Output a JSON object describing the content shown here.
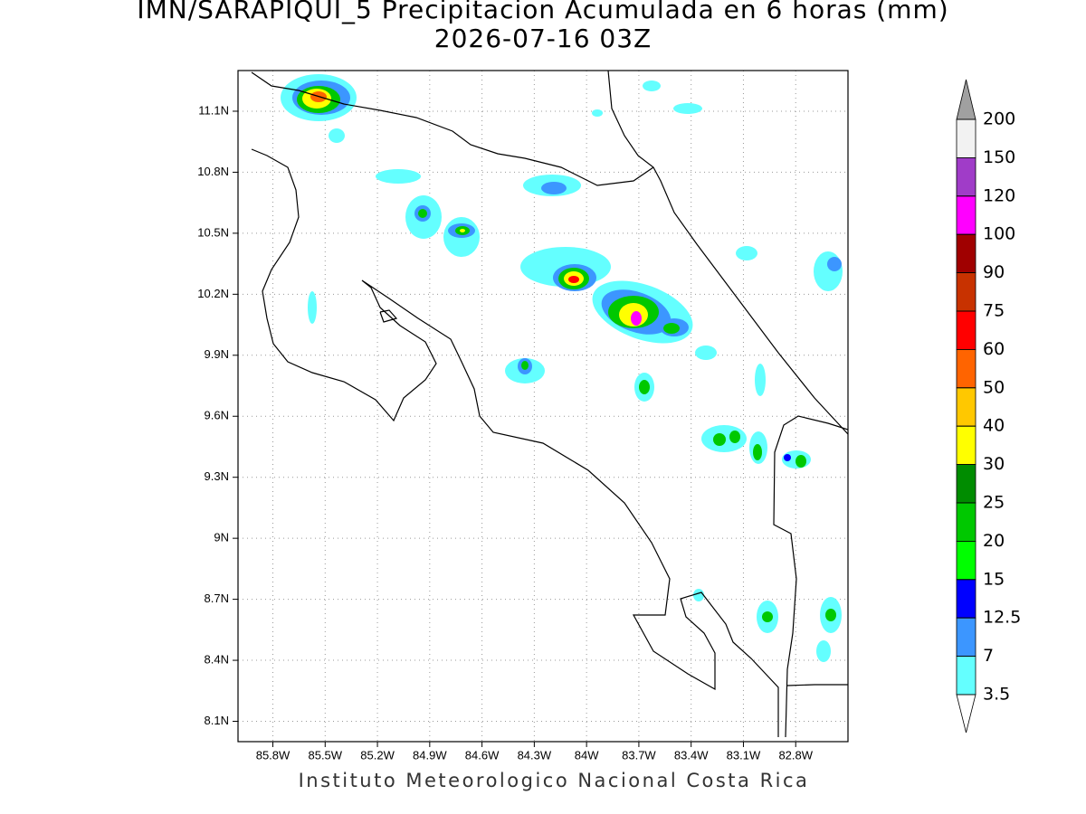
{
  "header": {
    "title": "IMN/SARAPIQUI_5 Precipitacion Acumulada en 6 horas (mm)",
    "subtitle": "2026-07-16 03Z"
  },
  "map": {
    "lonlim": [
      -86.0,
      -82.5
    ],
    "latlim": [
      8.0,
      11.3
    ],
    "grid": true,
    "lon_ticks": [
      {
        "value": -85.8,
        "label": "85.8W"
      },
      {
        "value": -85.5,
        "label": "85.5W"
      },
      {
        "value": -85.2,
        "label": "85.2W"
      },
      {
        "value": -84.9,
        "label": "84.9W"
      },
      {
        "value": -84.6,
        "label": "84.6W"
      },
      {
        "value": -84.3,
        "label": "84.3W"
      },
      {
        "value": -84.0,
        "label": "84W"
      },
      {
        "value": -83.7,
        "label": "83.7W"
      },
      {
        "value": -83.4,
        "label": "83.4W"
      },
      {
        "value": -83.1,
        "label": "83.1W"
      },
      {
        "value": -82.8,
        "label": "82.8W"
      }
    ],
    "lat_ticks": [
      {
        "value": 8.1,
        "label": "8.1N"
      },
      {
        "value": 8.4,
        "label": "8.4N"
      },
      {
        "value": 8.7,
        "label": "8.7N"
      },
      {
        "value": 9.0,
        "label": "9N"
      },
      {
        "value": 9.3,
        "label": "9.3N"
      },
      {
        "value": 9.6,
        "label": "9.6N"
      },
      {
        "value": 9.9,
        "label": "9.9N"
      },
      {
        "value": 10.2,
        "label": "10.2N"
      },
      {
        "value": 10.5,
        "label": "10.5N"
      },
      {
        "value": 10.8,
        "label": "10.8N"
      },
      {
        "value": 11.1,
        "label": "11.1N"
      }
    ]
  },
  "legend": {
    "levels": [
      200,
      150,
      120,
      100,
      90,
      75,
      60,
      50,
      40,
      30,
      25,
      20,
      15,
      12.5,
      7,
      3.5
    ],
    "colors": [
      "#f2f2f2",
      "#a03cc8",
      "#ff00ff",
      "#a00000",
      "#c83200",
      "#ff0000",
      "#ff6400",
      "#ffc800",
      "#ffff00",
      "#008c00",
      "#00c800",
      "#00ff00",
      "#0000ff",
      "#3c96ff",
      "#64ffff"
    ],
    "above_color": "#a0a0a0",
    "below_color": "#ffffff"
  },
  "footer": "Instituto Meteorologico Nacional Costa Rica"
}
